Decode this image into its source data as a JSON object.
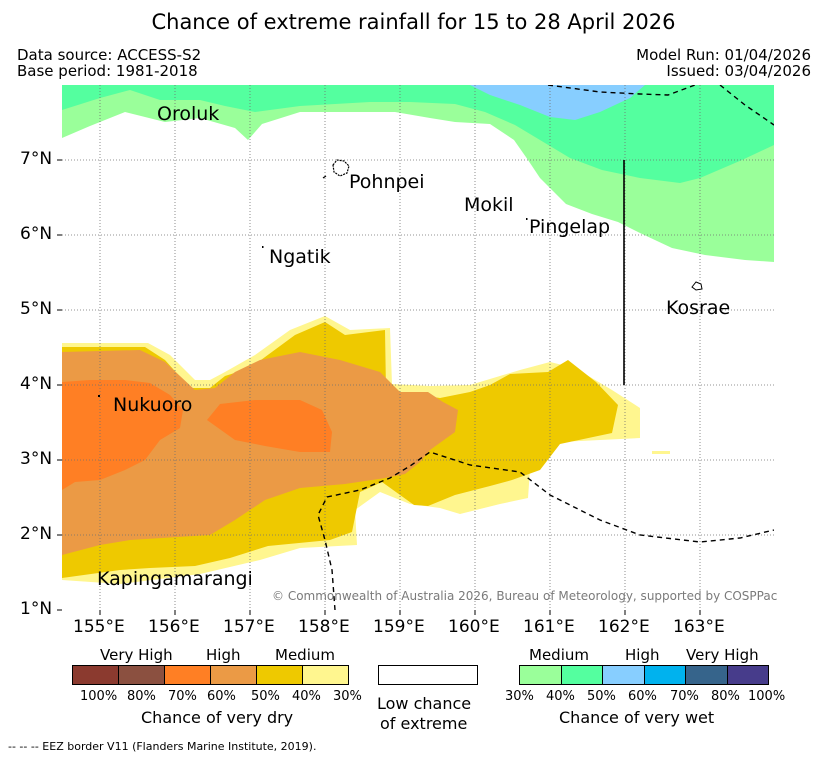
{
  "title": "Chance of extreme rainfall for 15 to 28 April 2026",
  "header": {
    "data_source": "Data source: ACCESS-S2",
    "base_period": "Base period: 1981-2018",
    "model_run": "Model Run: 01/04/2026",
    "issued": "Issued: 03/04/2026"
  },
  "map": {
    "lat_labels": [
      "7°N",
      "6°N",
      "5°N",
      "4°N",
      "3°N",
      "2°N",
      "1°N"
    ],
    "lon_labels": [
      "155°E",
      "156°E",
      "157°E",
      "158°E",
      "159°E",
      "160°E",
      "161°E",
      "162°E",
      "163°E"
    ],
    "places": {
      "oroluk": "Oroluk",
      "pohnpei": "Pohnpei",
      "mokil": "Mokil",
      "pingelap": "Pingelap",
      "ngatik": "Ngatik",
      "kosrae": "Kosrae",
      "nukuoro": "Nukuoro",
      "kapingamarangi": "Kapingamarangi"
    },
    "copyright": "© Commonwealth of Australia 2026, Bureau of Meteorology, supported by COSPPac"
  },
  "legend": {
    "dry": {
      "levels": [
        "Very High",
        "High",
        "Medium"
      ],
      "percents": [
        "100%",
        "80%",
        "70%",
        "60%",
        "50%",
        "40%",
        "30%"
      ],
      "colors": [
        "#8B3A2F",
        "#8B5040",
        "#FF7F24",
        "#EB9A45",
        "#EEC900",
        "#FFF68F"
      ],
      "caption": "Chance of very dry"
    },
    "low": {
      "line1": "Low chance",
      "line2": "of extreme"
    },
    "wet": {
      "levels": [
        "Medium",
        "High",
        "Very High"
      ],
      "percents": [
        "30%",
        "40%",
        "50%",
        "60%",
        "70%",
        "80%",
        "100%"
      ],
      "colors": [
        "#9AFF9A",
        "#54FF9F",
        "#87CEFF",
        "#00B2EE",
        "#36648B",
        "#473C8B"
      ],
      "caption": "Chance of very wet"
    }
  },
  "footnote": "--  --  -- EEZ border V11 (Flanders Marine Institute, 2019)."
}
